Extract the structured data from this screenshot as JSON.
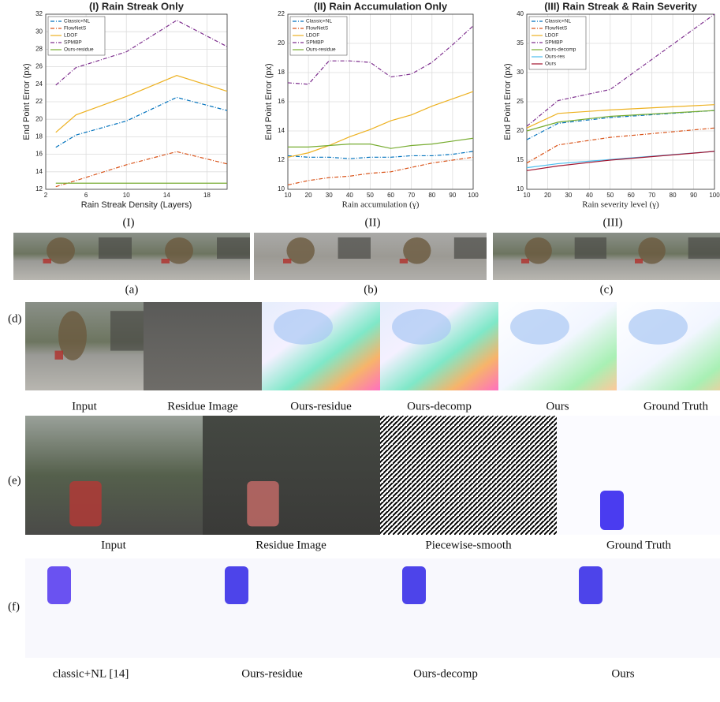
{
  "chart_data": [
    {
      "type": "line",
      "title": "(I) Rain Streak Only",
      "x_label": "Rain Streak Density (Layers)",
      "y_label": "End Point Error (px)",
      "x": [
        3,
        5,
        10,
        15,
        20
      ],
      "xlim": [
        2,
        20
      ],
      "xticks": [
        2,
        6,
        10,
        14,
        18
      ],
      "ylim": [
        12,
        32
      ],
      "yticks": [
        12,
        14,
        16,
        18,
        20,
        22,
        24,
        26,
        28,
        30,
        32
      ],
      "grid": true,
      "legend": "upper left",
      "series": [
        {
          "name": "Classic+NL",
          "color": "#0072bd",
          "linestyle": "dashdot",
          "values": [
            16.8,
            18.2,
            19.8,
            22.5,
            21.0
          ]
        },
        {
          "name": "FlowNetS",
          "color": "#d95319",
          "linestyle": "dashdot",
          "values": [
            12.3,
            13.0,
            14.8,
            16.3,
            14.9
          ]
        },
        {
          "name": "LDOF",
          "color": "#edb120",
          "linestyle": "solid",
          "values": [
            18.5,
            20.5,
            22.6,
            25.0,
            23.2
          ]
        },
        {
          "name": "SPMBP",
          "color": "#7e2f8e",
          "linestyle": "dashdot",
          "values": [
            23.9,
            25.9,
            27.7,
            31.3,
            28.3
          ]
        },
        {
          "name": "Ours-residue",
          "color": "#77ac30",
          "linestyle": "solid",
          "values": [
            12.7,
            12.7,
            12.7,
            12.7,
            12.7
          ]
        }
      ]
    },
    {
      "type": "line",
      "title": "(II) Rain Accumulation Only",
      "x_label": "Rain accumulation (γ)",
      "y_label": "End Point Error (px)",
      "x": [
        10,
        20,
        30,
        40,
        50,
        60,
        70,
        80,
        90,
        100
      ],
      "xlim": [
        10,
        100
      ],
      "xticks": [
        10,
        20,
        30,
        40,
        50,
        60,
        70,
        80,
        90,
        100
      ],
      "ylim": [
        10,
        22
      ],
      "yticks": [
        10,
        12,
        14,
        16,
        18,
        20,
        22
      ],
      "grid": true,
      "legend": "upper left",
      "series": [
        {
          "name": "Classic+NL",
          "color": "#0072bd",
          "linestyle": "dashdot",
          "values": [
            12.3,
            12.2,
            12.2,
            12.1,
            12.2,
            12.2,
            12.3,
            12.3,
            12.4,
            12.6
          ]
        },
        {
          "name": "FlowNetS",
          "color": "#d95319",
          "linestyle": "dashdot",
          "values": [
            10.3,
            10.6,
            10.8,
            10.9,
            11.1,
            11.2,
            11.5,
            11.8,
            12.0,
            12.2
          ]
        },
        {
          "name": "LDOF",
          "color": "#edb120",
          "linestyle": "solid",
          "values": [
            12.2,
            12.5,
            13.0,
            13.6,
            14.1,
            14.7,
            15.1,
            15.7,
            16.2,
            16.7
          ]
        },
        {
          "name": "SPMBP",
          "color": "#7e2f8e",
          "linestyle": "dashdot",
          "values": [
            17.3,
            17.2,
            18.8,
            18.8,
            18.7,
            17.7,
            17.9,
            18.7,
            19.9,
            21.2
          ]
        },
        {
          "name": "Ours-residue",
          "color": "#77ac30",
          "linestyle": "solid",
          "values": [
            12.9,
            12.9,
            13.0,
            13.1,
            13.1,
            12.8,
            13.0,
            13.1,
            13.3,
            13.5
          ]
        }
      ]
    },
    {
      "type": "line",
      "title": "(III) Rain Streak & Rain Severity",
      "x_label": "Rain severity level (γ)",
      "y_label": "End Point Error (px)",
      "x": [
        10,
        25,
        50,
        100
      ],
      "xlim": [
        10,
        100
      ],
      "xticks": [
        10,
        20,
        30,
        40,
        50,
        60,
        70,
        80,
        90,
        100
      ],
      "ylim": [
        10,
        40
      ],
      "yticks": [
        10,
        15,
        20,
        25,
        30,
        35,
        40
      ],
      "grid": true,
      "legend": "upper left",
      "series": [
        {
          "name": "Classic+NL",
          "color": "#0072bd",
          "linestyle": "dashdot",
          "values": [
            18.5,
            21.3,
            22.3,
            23.5
          ]
        },
        {
          "name": "FlowNetS",
          "color": "#d95319",
          "linestyle": "dashdot",
          "values": [
            14.5,
            17.6,
            18.9,
            20.5
          ]
        },
        {
          "name": "LDOF",
          "color": "#edb120",
          "linestyle": "solid",
          "values": [
            20.5,
            23.0,
            23.6,
            24.5
          ]
        },
        {
          "name": "SPMBP",
          "color": "#7e2f8e",
          "linestyle": "dashdot",
          "values": [
            20.8,
            25.2,
            27.1,
            40.0
          ]
        },
        {
          "name": "Ours-decomp",
          "color": "#77ac30",
          "linestyle": "solid",
          "values": [
            20.0,
            21.5,
            22.5,
            23.5
          ]
        },
        {
          "name": "Ours-res",
          "color": "#4dbeee",
          "linestyle": "solid",
          "values": [
            13.7,
            14.4,
            15.1,
            16.5
          ]
        },
        {
          "name": "Ours",
          "color": "#a2142f",
          "linestyle": "solid",
          "values": [
            13.2,
            14.0,
            15.0,
            16.5
          ]
        }
      ]
    }
  ],
  "chart_labels": [
    "(I)",
    "(II)",
    "(III)"
  ],
  "row_abc": {
    "captions": [
      "(a)",
      "(b)",
      "(c)"
    ]
  },
  "row_d": {
    "label": "(d)",
    "captions": [
      "Input",
      "Residue Image",
      "Ours-residue",
      "Ours-decomp",
      "Ours",
      "Ground Truth"
    ]
  },
  "row_e": {
    "label": "(e)",
    "captions": [
      "Input",
      "Residue Image",
      "Piecewise-smooth",
      "Ground Truth"
    ]
  },
  "row_f": {
    "label": "(f)",
    "captions": [
      "classic+NL [14]",
      "Ours-residue",
      "Ours-decomp",
      "Ours"
    ]
  }
}
